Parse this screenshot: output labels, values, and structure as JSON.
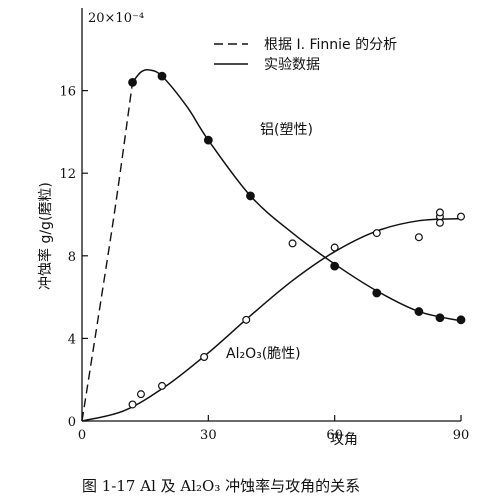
{
  "chart_data": {
    "type": "scatter",
    "title": "",
    "caption": "图 1-17   Al 及 Al₂O₃ 冲蚀率与攻角的关系",
    "xlabel": "攻角",
    "ylabel": "冲蚀率  g/g(磨粒)",
    "y_scale_note": "20×10⁻⁴",
    "xlim": [
      0,
      90
    ],
    "ylim": [
      0,
      20
    ],
    "x_ticks": [
      0,
      30,
      60,
      90
    ],
    "y_ticks": [
      0,
      4,
      8,
      12,
      16
    ],
    "grid": false,
    "legend_position": "top-center",
    "legend": [
      {
        "label": "根据 I. Finnie 的分析",
        "style": "dashed"
      },
      {
        "label": "实验数据",
        "style": "solid"
      }
    ],
    "annotations": [
      {
        "label": "铝(塑性)",
        "x": 42,
        "y": 14.8
      },
      {
        "label": "Al₂O₃(脆性)",
        "x": 34,
        "y": 3.0
      }
    ],
    "series": [
      {
        "name": "铝(塑性)",
        "marker": "filled-circle",
        "points": [
          [
            12,
            16.4
          ],
          [
            19,
            16.7
          ],
          [
            30,
            13.6
          ],
          [
            40,
            10.9
          ],
          [
            60,
            7.5
          ],
          [
            70,
            6.2
          ],
          [
            80,
            5.3
          ],
          [
            85,
            5.0
          ],
          [
            90,
            4.9
          ]
        ],
        "analysis_curve": [
          [
            0,
            0
          ],
          [
            4,
            5.2
          ],
          [
            8,
            10.5
          ],
          [
            12,
            16.4
          ]
        ],
        "experimental_curve": [
          [
            12,
            16.4
          ],
          [
            14,
            16.9
          ],
          [
            16,
            17.0
          ],
          [
            19,
            16.7
          ],
          [
            25,
            15.2
          ],
          [
            30,
            13.6
          ],
          [
            40,
            10.9
          ],
          [
            50,
            9.1
          ],
          [
            60,
            7.6
          ],
          [
            70,
            6.3
          ],
          [
            80,
            5.3
          ],
          [
            90,
            4.85
          ]
        ]
      },
      {
        "name": "Al₂O₃(脆性)",
        "marker": "open-circle",
        "points": [
          [
            12,
            0.8
          ],
          [
            14,
            1.3
          ],
          [
            19,
            1.7
          ],
          [
            29,
            3.1
          ],
          [
            39,
            4.9
          ],
          [
            50,
            8.6
          ],
          [
            60,
            8.4
          ],
          [
            70,
            9.1
          ],
          [
            80,
            8.9
          ],
          [
            85,
            9.9
          ],
          [
            85,
            9.6
          ],
          [
            85,
            10.1
          ],
          [
            90,
            9.9
          ]
        ],
        "experimental_curve": [
          [
            0,
            0
          ],
          [
            10,
            0.5
          ],
          [
            20,
            1.7
          ],
          [
            30,
            3.3
          ],
          [
            40,
            5.1
          ],
          [
            50,
            6.8
          ],
          [
            60,
            8.2
          ],
          [
            70,
            9.2
          ],
          [
            80,
            9.7
          ],
          [
            90,
            9.8
          ]
        ]
      }
    ]
  }
}
